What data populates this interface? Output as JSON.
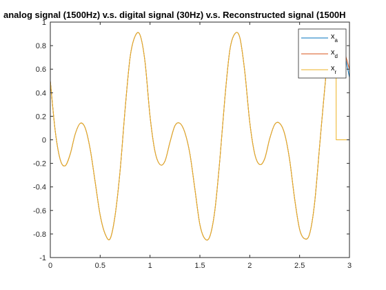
{
  "chart_data": {
    "type": "line",
    "title": "analog signal (1500Hz) v.s. digital signal (30Hz) v.s. Reconstructed signal (1500H",
    "xlabel": "",
    "ylabel": "",
    "xlim": [
      0,
      3
    ],
    "ylim": [
      -1,
      1
    ],
    "xticks": [
      "0",
      "0.5",
      "1",
      "1.5",
      "2",
      "2.5",
      "3"
    ],
    "yticks": [
      "-1",
      "-0.8",
      "-0.6",
      "-0.4",
      "-0.2",
      "0",
      "0.2",
      "0.4",
      "0.6",
      "0.8",
      "1"
    ],
    "grid": false,
    "legend_location": "top-right",
    "series": [
      {
        "name": "x_a",
        "legend_base": "x",
        "legend_sub": "a",
        "color": "#0072BD",
        "x": [
          0,
          0.05,
          0.1,
          0.15,
          0.2,
          0.25,
          0.3,
          0.35,
          0.4,
          0.45,
          0.5,
          0.55,
          0.6,
          0.65,
          0.7,
          0.75,
          0.8,
          0.85,
          0.9,
          0.95,
          1.0,
          1.05,
          1.1,
          1.15,
          1.2,
          1.25,
          1.3,
          1.35,
          1.4,
          1.45,
          1.5,
          1.55,
          1.6,
          1.65,
          1.7,
          1.75,
          1.8,
          1.85,
          1.9,
          1.95,
          2.0,
          2.05,
          2.1,
          2.15,
          2.2,
          2.25,
          2.3,
          2.35,
          2.4,
          2.45,
          2.5,
          2.55,
          2.6,
          2.65,
          2.7,
          2.75,
          2.8,
          2.85,
          2.9,
          2.95,
          3.0
        ],
        "y": [
          0.5,
          0.07,
          -0.17,
          -0.22,
          -0.12,
          0.05,
          0.14,
          0.1,
          -0.08,
          -0.36,
          -0.64,
          -0.8,
          -0.84,
          -0.64,
          -0.26,
          0.26,
          0.7,
          0.88,
          0.89,
          0.66,
          0.2,
          -0.1,
          -0.21,
          -0.18,
          -0.02,
          0.12,
          0.14,
          0.06,
          -0.12,
          -0.42,
          -0.72,
          -0.84,
          -0.82,
          -0.6,
          -0.17,
          0.35,
          0.76,
          0.9,
          0.87,
          0.58,
          0.15,
          -0.12,
          -0.21,
          -0.16,
          0.01,
          0.13,
          0.14,
          0.05,
          -0.17,
          -0.5,
          -0.76,
          -0.84,
          -0.8,
          -0.54,
          -0.06,
          0.42,
          0.82,
          0.91,
          0.82,
          0.74,
          0.53
        ]
      },
      {
        "name": "x_d",
        "legend_base": "x",
        "legend_sub": "d",
        "color": "#D95319",
        "x": [
          0,
          0.05,
          0.1,
          0.15,
          0.2,
          0.25,
          0.3,
          0.35,
          0.4,
          0.45,
          0.5,
          0.55,
          0.6,
          0.65,
          0.7,
          0.75,
          0.8,
          0.85,
          0.9,
          0.95,
          1.0,
          1.05,
          1.1,
          1.15,
          1.2,
          1.25,
          1.3,
          1.35,
          1.4,
          1.45,
          1.5,
          1.55,
          1.6,
          1.65,
          1.7,
          1.75,
          1.8,
          1.85,
          1.9,
          1.95,
          2.0,
          2.05,
          2.1,
          2.15,
          2.2,
          2.25,
          2.3,
          2.35,
          2.4,
          2.45,
          2.5,
          2.55,
          2.6,
          2.65,
          2.7,
          2.75,
          2.8,
          2.85,
          2.9,
          2.95,
          3.0
        ],
        "y": [
          0.5,
          0.07,
          -0.17,
          -0.22,
          -0.12,
          0.05,
          0.14,
          0.1,
          -0.08,
          -0.36,
          -0.64,
          -0.8,
          -0.84,
          -0.64,
          -0.26,
          0.26,
          0.7,
          0.88,
          0.89,
          0.66,
          0.2,
          -0.1,
          -0.21,
          -0.18,
          -0.02,
          0.12,
          0.14,
          0.06,
          -0.12,
          -0.42,
          -0.72,
          -0.84,
          -0.82,
          -0.6,
          -0.17,
          0.35,
          0.76,
          0.9,
          0.87,
          0.58,
          0.15,
          -0.12,
          -0.21,
          -0.16,
          0.01,
          0.13,
          0.14,
          0.05,
          -0.17,
          -0.5,
          -0.76,
          -0.84,
          -0.8,
          -0.54,
          -0.06,
          0.42,
          0.82,
          0.91,
          0.85,
          0.75,
          0.6
        ]
      },
      {
        "name": "x_r",
        "legend_base": "x",
        "legend_sub": "r",
        "color": "#EDB120",
        "x": [
          0,
          0.05,
          0.1,
          0.15,
          0.2,
          0.25,
          0.3,
          0.35,
          0.4,
          0.45,
          0.5,
          0.55,
          0.6,
          0.65,
          0.7,
          0.75,
          0.8,
          0.85,
          0.9,
          0.95,
          1.0,
          1.05,
          1.1,
          1.15,
          1.2,
          1.25,
          1.3,
          1.35,
          1.4,
          1.45,
          1.5,
          1.55,
          1.6,
          1.65,
          1.7,
          1.75,
          1.8,
          1.85,
          1.9,
          1.95,
          2.0,
          2.05,
          2.1,
          2.15,
          2.2,
          2.25,
          2.3,
          2.35,
          2.4,
          2.45,
          2.5,
          2.55,
          2.6,
          2.65,
          2.7,
          2.75,
          2.8,
          2.85,
          2.866,
          2.867,
          3.0
        ],
        "y": [
          0.5,
          0.07,
          -0.17,
          -0.22,
          -0.12,
          0.05,
          0.14,
          0.1,
          -0.08,
          -0.36,
          -0.64,
          -0.8,
          -0.84,
          -0.64,
          -0.26,
          0.26,
          0.7,
          0.88,
          0.89,
          0.66,
          0.2,
          -0.1,
          -0.21,
          -0.18,
          -0.02,
          0.12,
          0.14,
          0.06,
          -0.12,
          -0.42,
          -0.72,
          -0.84,
          -0.82,
          -0.6,
          -0.17,
          0.35,
          0.76,
          0.9,
          0.87,
          0.58,
          0.15,
          -0.12,
          -0.21,
          -0.16,
          0.01,
          0.13,
          0.14,
          0.05,
          -0.17,
          -0.5,
          -0.76,
          -0.84,
          -0.8,
          -0.54,
          -0.06,
          0.42,
          0.82,
          0.91,
          0.9,
          0,
          0
        ]
      }
    ]
  }
}
